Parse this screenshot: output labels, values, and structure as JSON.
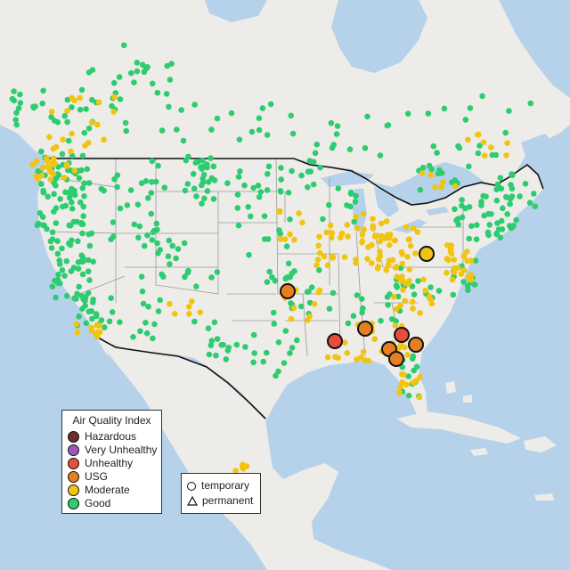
{
  "map": {
    "colors": {
      "ocean": "#b6d1ea",
      "land": "#eeece8",
      "land_alt": "#e4e2dd",
      "state_line": "#9a9a9a",
      "border_line": "#111111",
      "good": "#2ecc71",
      "moderate": "#f1c40f",
      "usg": "#e67e22",
      "unhealthy": "#e74c3c",
      "very_unhealthy": "#9b59b6",
      "hazardous": "#6b2d2d"
    }
  },
  "aqi_legend": {
    "title": "Air Quality Index",
    "items": [
      {
        "label": "Hazardous",
        "color": "#6b2d2d"
      },
      {
        "label": "Very Unhealthy",
        "color": "#9b59b6"
      },
      {
        "label": "Unhealthy",
        "color": "#e74c3c"
      },
      {
        "label": "USG",
        "color": "#e67e22"
      },
      {
        "label": "Moderate",
        "color": "#f1c40f"
      },
      {
        "label": "Good",
        "color": "#2ecc71"
      }
    ]
  },
  "site_legend": {
    "items": [
      {
        "label": "temporary",
        "shape": "circle"
      },
      {
        "label": "permanent",
        "shape": "triangle"
      }
    ]
  },
  "highlighted_sites": [
    {
      "category": "usg",
      "color": "#e67e22"
    },
    {
      "category": "moderate",
      "color": "#f1c40f"
    },
    {
      "category": "usg",
      "color": "#e67e22"
    },
    {
      "category": "usg",
      "color": "#e67e22"
    },
    {
      "category": "unhealthy",
      "color": "#e74c3c"
    },
    {
      "category": "unhealthy",
      "color": "#e74c3c"
    },
    {
      "category": "usg",
      "color": "#e67e22"
    },
    {
      "category": "usg",
      "color": "#e67e22"
    },
    {
      "category": "usg",
      "color": "#e67e22"
    },
    {
      "category": "usg",
      "color": "#e67e22"
    }
  ]
}
